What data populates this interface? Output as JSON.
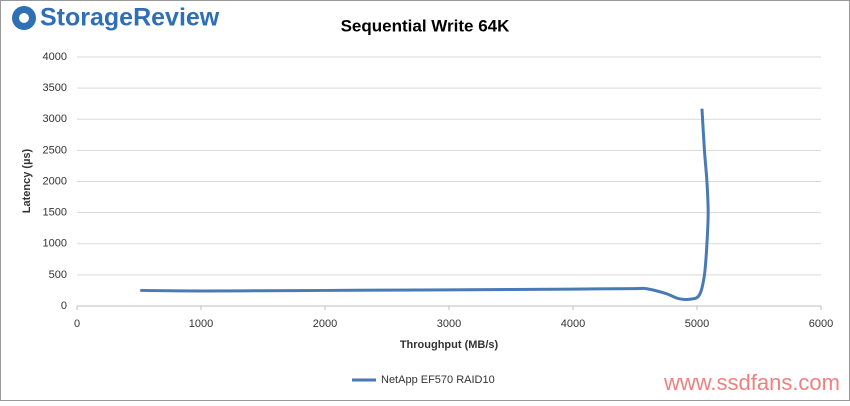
{
  "logo": "StorageReview",
  "watermark": "www.ssdfans.com",
  "chart_data": {
    "type": "line",
    "title": "Sequential Write 64K",
    "x_label": "Throughput (MB/s)",
    "y_label": "Latency (µs)",
    "xlim": [
      0,
      6000
    ],
    "xticks": [
      0,
      1000,
      2000,
      3000,
      4000,
      5000,
      6000
    ],
    "ylim": [
      0,
      4000
    ],
    "yticks": [
      0,
      500,
      1000,
      1500,
      2000,
      2500,
      3000,
      3500,
      4000
    ],
    "grid": true,
    "legend": "bottom",
    "series": [
      {
        "name": "NetApp EF570 RAID10",
        "color": "#4a7ab5",
        "x": [
          510,
          1000,
          1500,
          2000,
          2500,
          3000,
          3500,
          4000,
          4500,
          4600,
          4750,
          4850,
          4950,
          5020,
          5060,
          5080,
          5090,
          5080,
          5060,
          5040
        ],
        "values": [
          250,
          240,
          245,
          250,
          255,
          260,
          265,
          272,
          280,
          275,
          200,
          120,
          110,
          180,
          500,
          1000,
          1500,
          2000,
          2500,
          3170
        ]
      }
    ]
  }
}
